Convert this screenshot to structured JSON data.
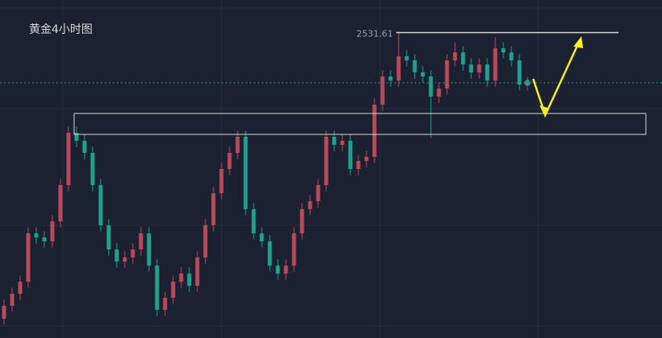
{
  "chart_data": {
    "type": "candlestick",
    "title": "黄金4小时图",
    "ylim": [
      2359,
      2550
    ],
    "grid": true,
    "up_color": "#b84a5e",
    "down_color": "#22a08e",
    "level": 2531.61,
    "open": [
      2370.0,
      2377.2,
      2384.0,
      2390.8,
      2418.1,
      2415.8,
      2413.6,
      2424.9,
      2445.4,
      2475.0,
      2470.4,
      2463.6,
      2445.4,
      2422.7,
      2409.0,
      2402.2,
      2404.5,
      2409.0,
      2418.1,
      2399.9,
      2374.9,
      2381.7,
      2390.8,
      2395.4,
      2388.5,
      2404.5,
      2422.7,
      2440.8,
      2454.5,
      2463.6,
      2472.7,
      2431.8,
      2418.1,
      2413.6,
      2399.9,
      2395.4,
      2399.9,
      2418.1,
      2431.8,
      2436.3,
      2445.4,
      2472.7,
      2468.1,
      2470.4,
      2454.5,
      2459.0,
      2461.3,
      2490.9,
      2506.8,
      2504.5,
      2518.2,
      2515.9,
      2509.1,
      2506.8,
      2495.4,
      2500.0,
      2515.9,
      2520.4,
      2513.6,
      2509.1,
      2513.6,
      2504.5,
      2522.7,
      2520.4,
      2515.9,
      2502.2
    ],
    "high": [
      2380.7,
      2387.5,
      2394.3,
      2421.6,
      2421.6,
      2419.3,
      2428.4,
      2448.9,
      2478.5,
      2478.5,
      2473.9,
      2467.1,
      2448.9,
      2426.2,
      2412.5,
      2408.0,
      2412.5,
      2421.6,
      2421.6,
      2403.4,
      2385.2,
      2394.3,
      2398.9,
      2398.9,
      2408.0,
      2426.2,
      2444.3,
      2458.0,
      2467.1,
      2476.2,
      2476.2,
      2435.3,
      2421.6,
      2417.1,
      2403.4,
      2403.4,
      2421.6,
      2435.3,
      2439.8,
      2448.9,
      2476.2,
      2476.2,
      2473.9,
      2473.9,
      2462.5,
      2464.8,
      2494.4,
      2510.3,
      2510.3,
      2531.61,
      2521.7,
      2519.4,
      2512.6,
      2510.3,
      2503.5,
      2519.4,
      2526.0,
      2523.9,
      2517.1,
      2517.1,
      2517.1,
      2529.0,
      2526.2,
      2523.9,
      2519.4,
      2506.7
    ],
    "low": [
      2366.5,
      2373.7,
      2380.5,
      2387.3,
      2412.3,
      2410.1,
      2410.1,
      2421.4,
      2441.9,
      2466.9,
      2460.1,
      2441.9,
      2419.2,
      2405.5,
      2398.7,
      2398.7,
      2401.0,
      2405.5,
      2396.4,
      2371.4,
      2371.4,
      2378.2,
      2387.3,
      2385.0,
      2385.0,
      2401.0,
      2419.2,
      2437.3,
      2451.0,
      2460.1,
      2428.3,
      2414.6,
      2410.1,
      2396.4,
      2391.9,
      2391.9,
      2396.4,
      2414.6,
      2428.3,
      2432.8,
      2441.9,
      2464.6,
      2464.6,
      2451.0,
      2451.0,
      2455.5,
      2457.8,
      2487.4,
      2501.0,
      2501.0,
      2512.4,
      2505.6,
      2503.3,
      2472.0,
      2491.9,
      2496.5,
      2512.4,
      2510.1,
      2505.6,
      2505.6,
      2501.0,
      2501.0,
      2516.9,
      2512.4,
      2498.7,
      2498.7
    ],
    "close": [
      2377.2,
      2384.0,
      2390.8,
      2418.1,
      2415.8,
      2413.6,
      2424.9,
      2445.4,
      2475.0,
      2470.4,
      2463.6,
      2445.4,
      2422.7,
      2409.0,
      2402.2,
      2404.5,
      2409.0,
      2418.1,
      2399.9,
      2374.9,
      2381.7,
      2390.8,
      2395.4,
      2388.5,
      2404.5,
      2422.7,
      2440.8,
      2454.5,
      2463.6,
      2472.7,
      2431.8,
      2418.1,
      2413.6,
      2399.9,
      2395.4,
      2399.9,
      2418.1,
      2431.8,
      2436.3,
      2445.4,
      2472.7,
      2468.1,
      2470.4,
      2454.5,
      2459.0,
      2461.3,
      2490.9,
      2506.8,
      2504.5,
      2518.2,
      2515.9,
      2509.1,
      2506.8,
      2495.4,
      2500.0,
      2515.9,
      2520.4,
      2513.6,
      2509.1,
      2513.6,
      2504.5,
      2522.7,
      2520.4,
      2515.9,
      2502.2,
      2503.2
    ]
  }
}
